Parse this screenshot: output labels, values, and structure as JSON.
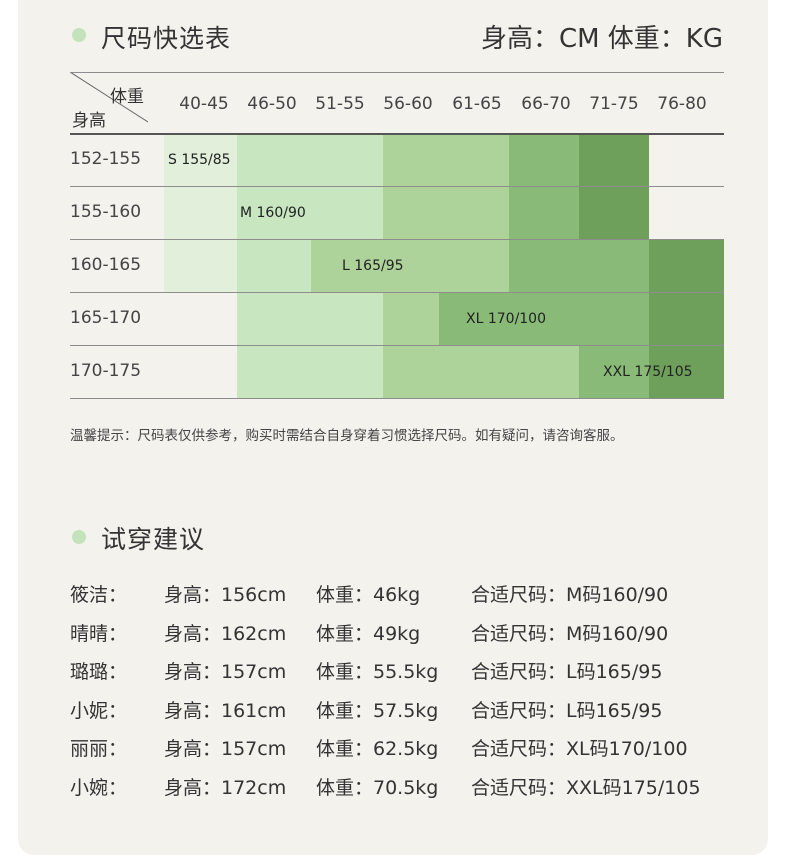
{
  "section1": {
    "title": "尺码快选表",
    "unit_note": "身高：CM  体重：KG"
  },
  "size_table": {
    "corner_top": "体重",
    "corner_bottom": "身高",
    "weight_headers": [
      "40-45",
      "46-50",
      "51-55",
      "56-60",
      "61-65",
      "66-70",
      "71-75",
      "76-80"
    ],
    "height_rows": [
      "152-155",
      "155-160",
      "160-165",
      "165-170",
      "170-175"
    ],
    "size_labels": [
      "S 155/85",
      "M 160/90",
      "L 165/95",
      "XL 170/100",
      "XXL 175/105"
    ],
    "colors": [
      "#e1efdb",
      "#c8e6c0",
      "#aed39a",
      "#8aba78",
      "#6ea05c"
    ]
  },
  "tip": "温馨提示：尺码表仅供参考，购买时需结合自身穿着习惯选择尺码。如有疑问，请咨询客服。",
  "section2": {
    "title": "试穿建议",
    "rows": [
      {
        "name": "筱洁：",
        "height": "身高：156cm",
        "weight": "体重：46kg",
        "size": "合适尺码：M码160/90"
      },
      {
        "name": "晴晴：",
        "height": "身高：162cm",
        "weight": "体重：49kg",
        "size": "合适尺码：M码160/90"
      },
      {
        "name": "璐璐：",
        "height": "身高：157cm",
        "weight": "体重：55.5kg",
        "size": "合适尺码：L码165/95"
      },
      {
        "name": "小妮：",
        "height": "身高：161cm",
        "weight": "体重：57.5kg",
        "size": "合适尺码：L码165/95"
      },
      {
        "name": "丽丽：",
        "height": "身高：157cm",
        "weight": "体重：62.5kg",
        "size": "合适尺码：XL码170/100"
      },
      {
        "name": "小婉：",
        "height": "身高：172cm",
        "weight": "体重：70.5kg",
        "size": "合适尺码：XXL码175/105"
      }
    ]
  }
}
